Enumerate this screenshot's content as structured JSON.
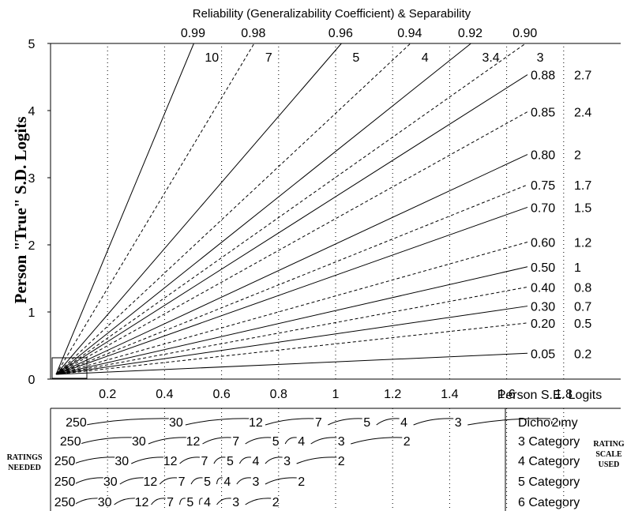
{
  "chart_data": {
    "type": "line",
    "title": "Reliability (Generalizability Coefficient) & Separability",
    "xlabel": "Person S.E. Logits",
    "ylabel": "Person \"True\" S.D. Logits",
    "xlim": [
      0,
      2.0
    ],
    "ylim": [
      0,
      5
    ],
    "x_ticks": [
      0.2,
      0.4,
      0.6,
      0.8,
      1,
      1.2,
      1.4,
      1.6,
      1.8
    ],
    "y_ticks": [
      0,
      1,
      2,
      3,
      4,
      5
    ],
    "grid": "dotted-vertical",
    "series": [
      {
        "reliability": "0.99",
        "separation": "10",
        "slope": 9.95,
        "style": "solid"
      },
      {
        "reliability": "0.98",
        "separation": "7",
        "slope": 7.0,
        "style": "dashed"
      },
      {
        "reliability": "0.96",
        "separation": "5",
        "slope": 4.9,
        "style": "solid"
      },
      {
        "reliability": "0.94",
        "separation": "4",
        "slope": 3.96,
        "style": "dashed"
      },
      {
        "reliability": "0.92",
        "separation": "3.4",
        "slope": 3.39,
        "style": "solid"
      },
      {
        "reliability": "0.90",
        "separation": "3",
        "slope": 3.0,
        "style": "dashed"
      },
      {
        "reliability": "0.88",
        "separation": "2.7",
        "slope": 2.71,
        "style": "solid"
      },
      {
        "reliability": "0.85",
        "separation": "2.4",
        "slope": 2.38,
        "style": "dashed"
      },
      {
        "reliability": "0.80",
        "separation": "2",
        "slope": 2.0,
        "style": "solid"
      },
      {
        "reliability": "0.75",
        "separation": "1.7",
        "slope": 1.73,
        "style": "dashed"
      },
      {
        "reliability": "0.70",
        "separation": "1.5",
        "slope": 1.53,
        "style": "solid"
      },
      {
        "reliability": "0.60",
        "separation": "1.2",
        "slope": 1.22,
        "style": "dashed"
      },
      {
        "reliability": "0.50",
        "separation": "1",
        "slope": 1.0,
        "style": "solid"
      },
      {
        "reliability": "0.40",
        "separation": "0.8",
        "slope": 0.82,
        "style": "dashed"
      },
      {
        "reliability": "0.30",
        "separation": "0.7",
        "slope": 0.65,
        "style": "solid"
      },
      {
        "reliability": "0.20",
        "separation": "0.5",
        "slope": 0.5,
        "style": "dashed"
      },
      {
        "reliability": "0.05",
        "separation": "0.2",
        "slope": 0.23,
        "style": "solid"
      }
    ],
    "ratings_needed": {
      "left_label": [
        "RATINGS",
        "NEEDED"
      ],
      "right_label": [
        "RATING",
        "SCALE",
        "USED"
      ],
      "scales": [
        {
          "name": "Dichotomy",
          "ratings": [
            {
              "label": "250",
              "x": 0.09
            },
            {
              "label": "30",
              "x": 0.44
            },
            {
              "label": "12",
              "x": 0.72
            },
            {
              "label": "7",
              "x": 0.94
            },
            {
              "label": "5",
              "x": 1.11
            },
            {
              "label": "4",
              "x": 1.24
            },
            {
              "label": "3",
              "x": 1.43
            },
            {
              "label": "2",
              "x": 1.77
            }
          ]
        },
        {
          "name": "3 Category",
          "ratings": [
            {
              "label": "250",
              "x": 0.07
            },
            {
              "label": "30",
              "x": 0.31
            },
            {
              "label": "12",
              "x": 0.5
            },
            {
              "label": "7",
              "x": 0.65
            },
            {
              "label": "5",
              "x": 0.79
            },
            {
              "label": "4",
              "x": 0.88
            },
            {
              "label": "3",
              "x": 1.02
            },
            {
              "label": "2",
              "x": 1.25
            }
          ]
        },
        {
          "name": "4 Category",
          "ratings": [
            {
              "label": "250",
              "x": 0.05
            },
            {
              "label": "30",
              "x": 0.25
            },
            {
              "label": "12",
              "x": 0.42
            },
            {
              "label": "7",
              "x": 0.54
            },
            {
              "label": "5",
              "x": 0.63
            },
            {
              "label": "4",
              "x": 0.72
            },
            {
              "label": "3",
              "x": 0.83
            },
            {
              "label": "2",
              "x": 1.02
            }
          ]
        },
        {
          "name": "5 Category",
          "ratings": [
            {
              "label": "250",
              "x": 0.05
            },
            {
              "label": "30",
              "x": 0.21
            },
            {
              "label": "12",
              "x": 0.35
            },
            {
              "label": "7",
              "x": 0.46
            },
            {
              "label": "5",
              "x": 0.55
            },
            {
              "label": "4",
              "x": 0.62
            },
            {
              "label": "3",
              "x": 0.72
            },
            {
              "label": "2",
              "x": 0.88
            }
          ]
        },
        {
          "name": "6 Category",
          "ratings": [
            {
              "label": "250",
              "x": 0.05
            },
            {
              "label": "30",
              "x": 0.19
            },
            {
              "label": "12",
              "x": 0.32
            },
            {
              "label": "7",
              "x": 0.42
            },
            {
              "label": "5",
              "x": 0.49
            },
            {
              "label": "4",
              "x": 0.55
            },
            {
              "label": "3",
              "x": 0.65
            },
            {
              "label": "2",
              "x": 0.79
            }
          ]
        }
      ]
    }
  }
}
